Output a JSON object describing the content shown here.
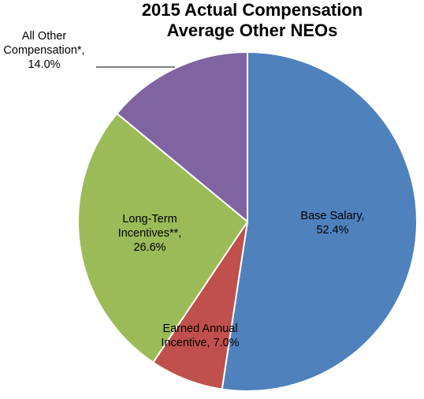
{
  "chart_data": {
    "type": "pie",
    "title": "2015 Actual Compensation",
    "subtitle": "Average Other NEOs",
    "slices": [
      {
        "label_lines": [
          "Base Salary,",
          "52.4%"
        ],
        "name": "Base Salary",
        "value": 52.4,
        "color": "#4F81BD"
      },
      {
        "label_lines": [
          "Earned Annual",
          "Incentive, 7.0%"
        ],
        "name": "Earned Annual Incentive",
        "value": 7.0,
        "color": "#C0504D"
      },
      {
        "label_lines": [
          "Long-Term",
          "Incentives**,",
          "26.6%"
        ],
        "name": "Long-Term Incentives**",
        "value": 26.6,
        "color": "#9BBB59"
      },
      {
        "label_lines": [
          "All Other",
          "Compensation*,",
          "14.0%"
        ],
        "name": "All Other Compensation*",
        "value": 14.0,
        "color": "#8064A2"
      }
    ],
    "start_angle": "12 o'clock",
    "direction": "clockwise",
    "legend": "none"
  }
}
